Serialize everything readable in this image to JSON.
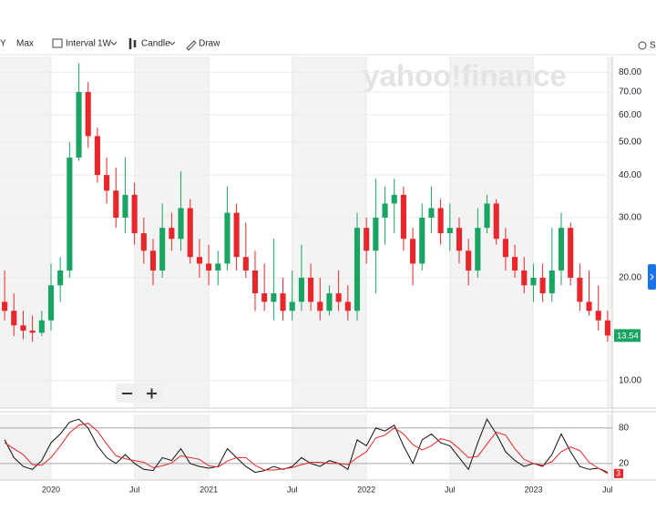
{
  "toolbar": {
    "range_prev": "Y",
    "range": "Max",
    "interval_label": "Interval",
    "interval": "1W",
    "chart_type": "Candle",
    "draw": "Draw",
    "settings": "S"
  },
  "chart_data": {
    "type": "candlestick",
    "watermark": "yahoo!finance",
    "log_scale": true,
    "grid": true,
    "up_color": "#1aa463",
    "down_color": "#e8262b",
    "categories": [
      null,
      null,
      null,
      null,
      null,
      "2020",
      null,
      null,
      null,
      null,
      null,
      null,
      null,
      null,
      "Jul",
      null,
      null,
      null,
      null,
      null,
      null,
      null,
      "2021",
      null,
      null,
      null,
      null,
      null,
      null,
      null,
      null,
      "Jul",
      null,
      null,
      null,
      null,
      null,
      null,
      null,
      "2022",
      null,
      null,
      null,
      null,
      null,
      null,
      null,
      null,
      "Jul",
      null,
      null,
      null,
      null,
      null,
      null,
      null,
      null,
      "2023",
      null,
      null,
      null,
      null,
      null,
      null,
      null,
      "Jul"
    ],
    "open": [
      17,
      16,
      14.5,
      14,
      13.8,
      15,
      19,
      21,
      45,
      70,
      52,
      40,
      36,
      30,
      35,
      27,
      24,
      21,
      28,
      26,
      32,
      23,
      22,
      21,
      22,
      31,
      23,
      21,
      18,
      17,
      18,
      16,
      17,
      20,
      17,
      16,
      18,
      17,
      16,
      28,
      24,
      30,
      33,
      35,
      26,
      22,
      30,
      32,
      27,
      28,
      24,
      21,
      28,
      33,
      26,
      23,
      21,
      19,
      20,
      18,
      21,
      28,
      20,
      17,
      16,
      15
    ],
    "high": [
      21,
      18,
      16,
      15.5,
      16,
      22,
      23,
      50,
      85,
      75,
      55,
      45,
      42,
      45,
      38,
      30,
      26,
      33,
      31,
      41,
      34,
      26,
      25,
      24,
      37,
      33,
      29,
      24,
      22,
      26,
      20,
      21,
      25,
      22,
      20,
      19,
      21,
      19,
      31,
      30,
      39,
      37,
      39,
      37,
      28,
      33,
      37,
      34,
      33,
      30,
      26,
      32,
      35,
      34,
      28,
      25,
      23,
      22,
      22,
      28,
      31,
      29,
      22,
      21,
      19,
      16
    ],
    "low": [
      15,
      13.5,
      13.2,
      13,
      13.5,
      14,
      17,
      20,
      44,
      48,
      38,
      33,
      28,
      27,
      25,
      22,
      19,
      20,
      24,
      24,
      22,
      20,
      19,
      19,
      21,
      21,
      20,
      16,
      16,
      15,
      15,
      15,
      16,
      16,
      15,
      15.5,
      16,
      15,
      15,
      22,
      18,
      25,
      27,
      24,
      19,
      21,
      27,
      25,
      24,
      22,
      19,
      20,
      27,
      25,
      21,
      20,
      18,
      17,
      17,
      17,
      19,
      19,
      16,
      15.5,
      14,
      13
    ],
    "close": [
      16,
      14.5,
      14,
      13.8,
      15,
      19,
      21,
      45,
      70,
      52,
      40,
      36,
      30,
      35,
      27,
      24,
      21,
      28,
      26,
      32,
      23,
      22,
      21,
      22,
      31,
      23,
      21,
      18,
      17,
      18,
      16,
      17,
      20,
      17,
      16,
      18,
      17,
      16,
      28,
      24,
      30,
      33,
      35,
      26,
      22,
      30,
      32,
      27,
      28,
      24,
      21,
      28,
      33,
      26,
      23,
      21,
      19,
      20,
      18,
      21,
      28,
      20,
      17,
      16,
      15,
      13.54
    ],
    "ylim": [
      8.3,
      89
    ],
    "yticks": [
      {
        "value": 10,
        "label": "10.00"
      },
      {
        "value": 20,
        "label": "20.00"
      },
      {
        "value": 30,
        "label": "30.00"
      },
      {
        "value": 40,
        "label": "40.00"
      },
      {
        "value": 50,
        "label": "50.00"
      },
      {
        "value": 60,
        "label": "60.00"
      },
      {
        "value": 70,
        "label": "70.00"
      },
      {
        "value": 80,
        "label": "80.00"
      }
    ],
    "indicator": {
      "type": "line",
      "ylim": [
        -8,
        103
      ],
      "yticks": [
        20,
        80
      ],
      "series": [
        {
          "color": "#111111",
          "values": [
            60,
            30,
            15,
            10,
            25,
            55,
            70,
            90,
            95,
            80,
            50,
            30,
            20,
            35,
            20,
            10,
            8,
            30,
            25,
            45,
            20,
            15,
            12,
            15,
            45,
            30,
            15,
            5,
            8,
            15,
            10,
            15,
            30,
            20,
            15,
            25,
            20,
            10,
            60,
            50,
            80,
            75,
            85,
            50,
            20,
            60,
            70,
            55,
            50,
            30,
            10,
            55,
            95,
            70,
            40,
            25,
            15,
            20,
            15,
            35,
            70,
            40,
            15,
            10,
            12,
            5
          ]
        },
        {
          "color": "#e8262b",
          "values": [
            55,
            45,
            35,
            18,
            17,
            30,
            50,
            72,
            85,
            88,
            75,
            53,
            33,
            28,
            25,
            22,
            13,
            16,
            21,
            33,
            30,
            27,
            16,
            14,
            24,
            30,
            30,
            17,
            9,
            9,
            11,
            13,
            18,
            22,
            22,
            20,
            20,
            18,
            30,
            40,
            63,
            68,
            80,
            70,
            52,
            43,
            50,
            62,
            58,
            45,
            30,
            32,
            53,
            73,
            68,
            45,
            27,
            20,
            17,
            23,
            40,
            48,
            42,
            22,
            12,
            3
          ]
        }
      ]
    }
  }
}
